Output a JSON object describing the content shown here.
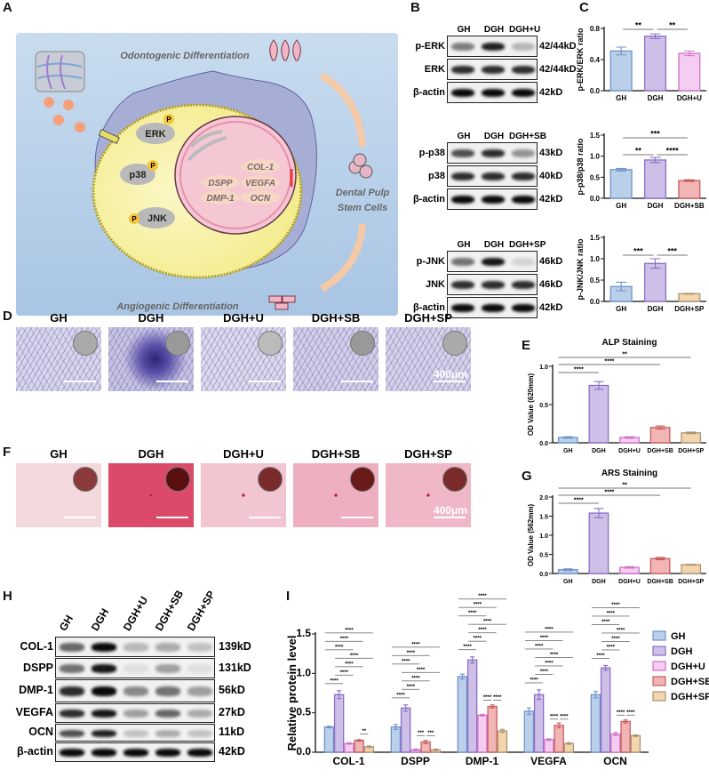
{
  "panels": {
    "A": "A",
    "B": "B",
    "C": "C",
    "D": "D",
    "E": "E",
    "F": "F",
    "G": "G",
    "H": "H",
    "I": "I"
  },
  "diagram": {
    "top_label": "Odontogenic Differentiation",
    "bottom_label": "Angiogenic Differentiation",
    "cells_label_1": "Dental Pulp",
    "cells_label_2": "Stem Cells",
    "kinases": [
      "ERK",
      "p38",
      "JNK"
    ],
    "phospho": "P",
    "genes": [
      "COL-1",
      "DSPP",
      "VEGFA",
      "DMP-1",
      "OCN"
    ]
  },
  "blots_B": [
    {
      "lanes": [
        "GH",
        "DGH",
        "DGH+U"
      ],
      "rows": [
        {
          "label": "p-ERK",
          "kd": "42/44kD",
          "bands": [
            0.5,
            0.9,
            0.25
          ]
        },
        {
          "label": "ERK",
          "kd": "42/44kD",
          "bands": [
            0.85,
            0.85,
            0.85
          ]
        },
        {
          "label": "β-actin",
          "kd": "42kD",
          "bands": [
            1,
            1,
            1
          ]
        }
      ]
    },
    {
      "lanes": [
        "GH",
        "DGH",
        "DGH+SB"
      ],
      "rows": [
        {
          "label": "p-p38",
          "kd": "43kD",
          "bands": [
            0.7,
            0.85,
            0.4
          ]
        },
        {
          "label": "p38",
          "kd": "40kD",
          "bands": [
            0.85,
            0.85,
            0.85
          ]
        },
        {
          "label": "β-actin",
          "kd": "42kD",
          "bands": [
            1,
            1,
            1
          ]
        }
      ]
    },
    {
      "lanes": [
        "GH",
        "DGH",
        "DGH+SP"
      ],
      "rows": [
        {
          "label": "p-JNK",
          "kd": "46kD",
          "bands": [
            0.55,
            0.95,
            0.12
          ]
        },
        {
          "label": "JNK",
          "kd": "46kD",
          "bands": [
            0.85,
            0.85,
            0.85
          ]
        },
        {
          "label": "β-actin",
          "kd": "42kD",
          "bands": [
            1,
            1,
            1
          ]
        }
      ]
    }
  ],
  "stain_D": {
    "labels": [
      "GH",
      "DGH",
      "DGH+U",
      "DGH+SB",
      "DGH+SP"
    ],
    "scale": "400μm"
  },
  "stain_F": {
    "labels": [
      "GH",
      "DGH",
      "DGH+U",
      "DGH+SB",
      "DGH+SP"
    ],
    "scale": "400μm"
  },
  "blot_H": {
    "lanes": [
      "GH",
      "DGH",
      "DGH+U",
      "DGH+SB",
      "DGH+SP"
    ],
    "rows": [
      {
        "label": "COL-1",
        "kd": "139kD",
        "bands": [
          0.6,
          1,
          0.25,
          0.3,
          0.2
        ]
      },
      {
        "label": "DSPP",
        "kd": "131kD",
        "bands": [
          0.55,
          0.95,
          0.08,
          0.35,
          0.08
        ]
      },
      {
        "label": "DMP-1",
        "kd": "56kD",
        "bands": [
          0.85,
          1,
          0.45,
          0.55,
          0.35
        ]
      },
      {
        "label": "VEGFA",
        "kd": "27kD",
        "bands": [
          0.85,
          0.95,
          0.35,
          0.6,
          0.3
        ]
      },
      {
        "label": "OCN",
        "kd": "11kD",
        "bands": [
          0.7,
          0.9,
          0.2,
          0.3,
          0.2
        ]
      },
      {
        "label": "β-actin",
        "kd": "42kD",
        "bands": [
          1,
          1,
          1,
          1,
          1
        ]
      }
    ]
  },
  "colors": {
    "GH": [
      "#b9cfea",
      "#6f93c6"
    ],
    "DGH": [
      "#cdbfe7",
      "#8b6ec6"
    ],
    "DGH+U": [
      "#f5cdf0",
      "#cf72c8"
    ],
    "DGH+SB": [
      "#f2b5b5",
      "#c65d5d"
    ],
    "DGH+SP": [
      "#f3d6ae",
      "#ad9274"
    ]
  },
  "chart_data": [
    {
      "id": "c1",
      "type": "bar",
      "ylabel": "p-ERK/ERK ratio",
      "categories": [
        "GH",
        "DGH",
        "DGH+U"
      ],
      "values": [
        0.51,
        0.7,
        0.48
      ],
      "errors": [
        0.05,
        0.03,
        0.03
      ],
      "ylim": [
        0,
        0.8
      ],
      "yticks": [
        "0.0",
        "0.4",
        "0.8"
      ],
      "sig": [
        [
          0,
          1,
          "**"
        ],
        [
          1,
          2,
          "**"
        ]
      ]
    },
    {
      "id": "c2",
      "type": "bar",
      "ylabel": "p-p38/p38 ratio",
      "categories": [
        "GH",
        "DGH",
        "DGH+SB"
      ],
      "values": [
        0.68,
        0.91,
        0.42
      ],
      "errors": [
        0.03,
        0.06,
        0.02
      ],
      "ylim": [
        0,
        1.5
      ],
      "yticks": [
        "0.0",
        "0.5",
        "1.0",
        "1.5"
      ],
      "sig": [
        [
          0,
          1,
          "**"
        ],
        [
          1,
          2,
          "****"
        ],
        [
          0,
          2,
          "***"
        ]
      ]
    },
    {
      "id": "c3",
      "type": "bar",
      "ylabel": "p-JNK/JNK ratio",
      "categories": [
        "GH",
        "DGH",
        "DGH+SP"
      ],
      "values": [
        0.35,
        0.89,
        0.18
      ],
      "errors": [
        0.1,
        0.11,
        0.01
      ],
      "ylim": [
        0,
        1.5
      ],
      "yticks": [
        "0.0",
        "0.5",
        "1.0",
        "1.5"
      ],
      "sig": [
        [
          0,
          1,
          "***"
        ],
        [
          1,
          2,
          "***"
        ]
      ]
    },
    {
      "id": "e",
      "type": "bar",
      "title": "ALP Staining",
      "ylabel": "OD Value (620mm)",
      "categories": [
        "GH",
        "DGH",
        "DGH+U",
        "DGH+SB",
        "DGH+SP"
      ],
      "values": [
        0.07,
        0.75,
        0.07,
        0.2,
        0.13
      ],
      "errors": [
        0.01,
        0.05,
        0.01,
        0.02,
        0.01
      ],
      "ylim": [
        0,
        1.0
      ],
      "yticks": [
        "0.0",
        "0.5",
        "1.0"
      ],
      "sig": [
        [
          0,
          1,
          "****"
        ],
        [
          0,
          3,
          "****"
        ],
        [
          0,
          4,
          "**"
        ]
      ]
    },
    {
      "id": "g",
      "type": "bar",
      "title": "ARS Staining",
      "ylabel": "OD Value (562mm)",
      "categories": [
        "GH",
        "DGH",
        "DGH+U",
        "DGH+SB",
        "DGH+SP"
      ],
      "values": [
        0.1,
        1.58,
        0.16,
        0.39,
        0.23
      ],
      "errors": [
        0.02,
        0.12,
        0.02,
        0.03,
        0.01
      ],
      "ylim": [
        0,
        2.0
      ],
      "yticks": [
        "0.0",
        "0.5",
        "1.0",
        "1.5",
        "2.0"
      ],
      "sig": [
        [
          0,
          1,
          "****"
        ],
        [
          0,
          3,
          "****"
        ],
        [
          0,
          4,
          "**"
        ]
      ]
    },
    {
      "id": "i",
      "type": "bar",
      "ylabel": "Relative protein level",
      "categories": [
        "COL-1",
        "DSPP",
        "DMP-1",
        "VEGFA",
        "OCN"
      ],
      "ylim": [
        0,
        1.5
      ],
      "yticks": [
        "0.0",
        "0.5",
        "1.0",
        "1.5"
      ],
      "series": [
        {
          "name": "GH",
          "values": [
            0.32,
            0.32,
            0.96,
            0.52,
            0.73
          ],
          "errors": [
            0.01,
            0.03,
            0.03,
            0.04,
            0.04
          ]
        },
        {
          "name": "DGH",
          "values": [
            0.73,
            0.56,
            1.17,
            0.73,
            1.07
          ],
          "errors": [
            0.05,
            0.04,
            0.04,
            0.06,
            0.03
          ]
        },
        {
          "name": "DGH+U",
          "values": [
            0.11,
            0.03,
            0.47,
            0.16,
            0.23
          ],
          "errors": [
            0.01,
            0.01,
            0.01,
            0.01,
            0.02
          ]
        },
        {
          "name": "DGH+SB",
          "values": [
            0.15,
            0.13,
            0.58,
            0.34,
            0.39
          ],
          "errors": [
            0.01,
            0.02,
            0.02,
            0.03,
            0.02
          ]
        },
        {
          "name": "DGH+SP",
          "values": [
            0.07,
            0.03,
            0.27,
            0.11,
            0.21
          ],
          "errors": [
            0.01,
            0.01,
            0.02,
            0.01,
            0.01
          ]
        }
      ],
      "sig_low": [
        [
          [
            3,
            4,
            "**"
          ]
        ],
        [
          [
            2,
            3,
            "***"
          ],
          [
            3,
            4,
            "***"
          ]
        ],
        [
          [
            2,
            3,
            "****"
          ],
          [
            3,
            4,
            "****"
          ]
        ],
        [
          [
            2,
            3,
            "****"
          ],
          [
            3,
            4,
            "****"
          ]
        ],
        [
          [
            2,
            3,
            "****"
          ],
          [
            3,
            4,
            "****"
          ]
        ]
      ],
      "sig_high": [
        [
          0,
          1,
          "****"
        ],
        [
          1,
          2,
          "****"
        ],
        [
          1,
          3,
          "****"
        ],
        [
          1,
          4,
          "****"
        ],
        [
          0,
          2,
          "****"
        ],
        [
          0,
          3,
          "****"
        ],
        [
          0,
          4,
          "****"
        ]
      ]
    }
  ]
}
